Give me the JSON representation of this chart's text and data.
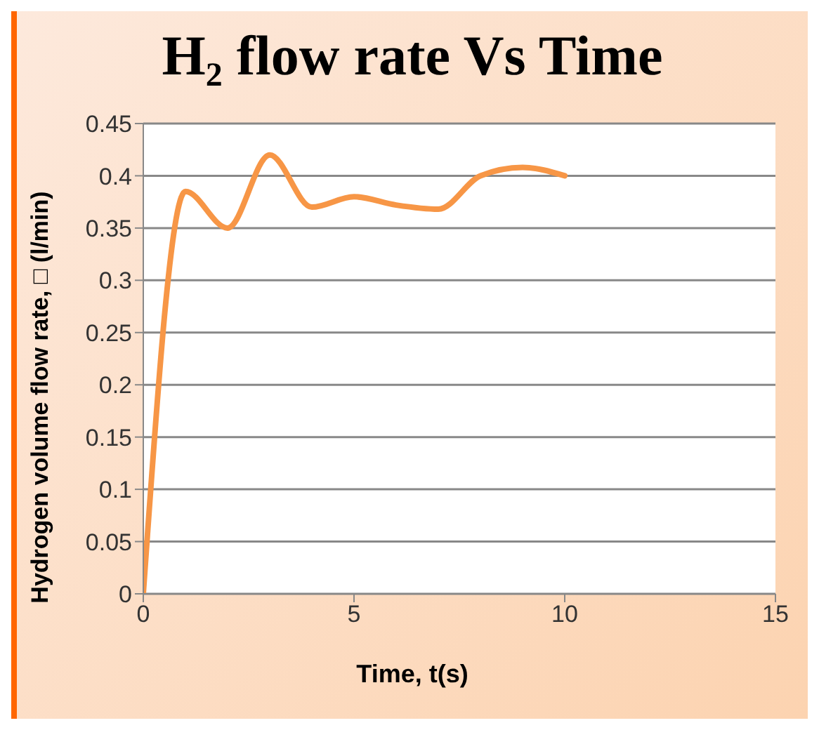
{
  "chart_data": {
    "type": "line",
    "title": "H₂ flow rate Vs Time",
    "xlabel": "Time, t(s)",
    "ylabel": "Hydrogen volume flow rate, □ (l/min)",
    "x": [
      0,
      1,
      2,
      3,
      4,
      5,
      6,
      7,
      8,
      9,
      10
    ],
    "series": [
      {
        "color": "#f79646",
        "values": [
          0,
          0.385,
          0.35,
          0.42,
          0.37,
          0.38,
          0.372,
          0.368,
          0.4,
          0.408,
          0.4
        ]
      }
    ],
    "xlim": [
      0,
      15
    ],
    "xticks": [
      0,
      5,
      10,
      15
    ],
    "ylim": [
      0,
      0.45
    ],
    "yticks": [
      0,
      0.05,
      0.1,
      0.15,
      0.2,
      0.25,
      0.3,
      0.35,
      0.4,
      0.45
    ],
    "grid": "y",
    "marker": "none",
    "line_style": "solid"
  }
}
